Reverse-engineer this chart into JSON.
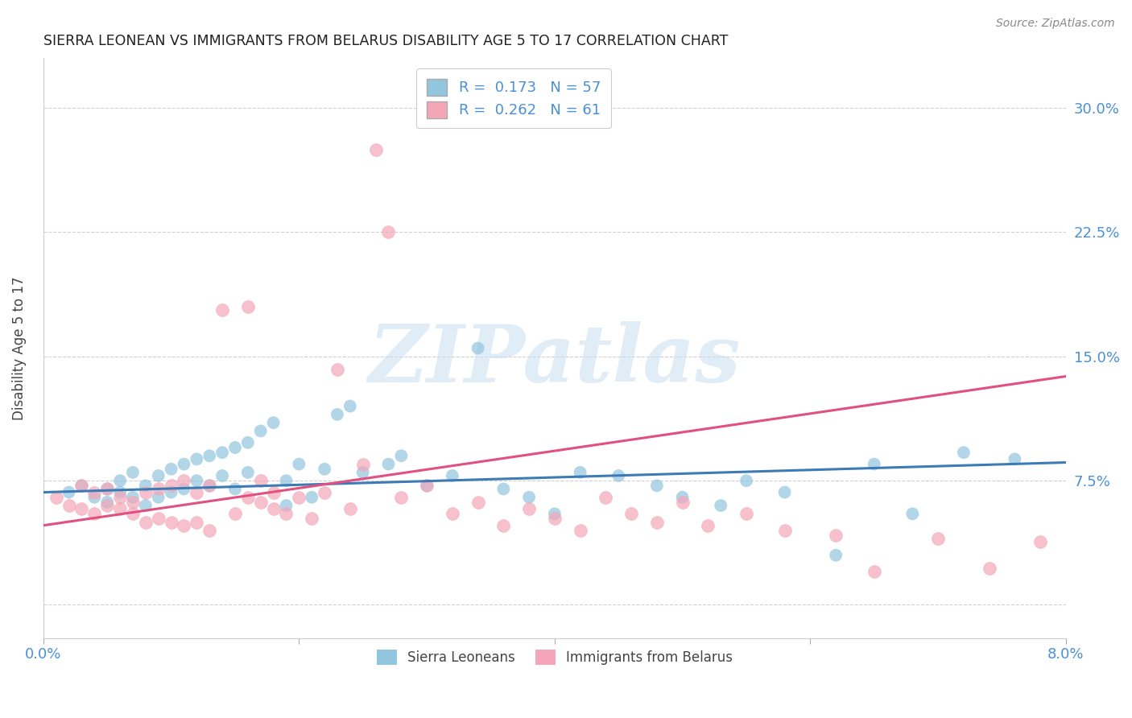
{
  "title": "SIERRA LEONEAN VS IMMIGRANTS FROM BELARUS DISABILITY AGE 5 TO 17 CORRELATION CHART",
  "source": "Source: ZipAtlas.com",
  "ylabel": "Disability Age 5 to 17",
  "ytick_labels": [
    "",
    "7.5%",
    "15.0%",
    "22.5%",
    "30.0%"
  ],
  "ytick_values": [
    0.0,
    0.075,
    0.15,
    0.225,
    0.3
  ],
  "xlim": [
    0.0,
    0.08
  ],
  "ylim": [
    -0.02,
    0.33
  ],
  "legend_label1": "Sierra Leoneans",
  "legend_label2": "Immigrants from Belarus",
  "R1": 0.173,
  "N1": 57,
  "R2": 0.262,
  "N2": 61,
  "color_blue": "#92c5de",
  "color_pink": "#f4a6b8",
  "color_blue_line": "#3d7bb5",
  "color_pink_line": "#e05080",
  "watermark_text": "ZIPatlas",
  "background_color": "#ffffff",
  "grid_color": "#d0d0d0",
  "title_color": "#222222",
  "axis_label_color": "#444444",
  "tick_label_color": "#4a90d9",
  "blue_x": [
    0.002,
    0.003,
    0.004,
    0.005,
    0.005,
    0.006,
    0.006,
    0.007,
    0.007,
    0.008,
    0.008,
    0.009,
    0.009,
    0.01,
    0.01,
    0.011,
    0.011,
    0.012,
    0.012,
    0.013,
    0.013,
    0.014,
    0.014,
    0.015,
    0.015,
    0.016,
    0.016,
    0.017,
    0.018,
    0.019,
    0.019,
    0.02,
    0.021,
    0.022,
    0.023,
    0.024,
    0.025,
    0.027,
    0.028,
    0.03,
    0.032,
    0.034,
    0.036,
    0.038,
    0.04,
    0.042,
    0.045,
    0.048,
    0.05,
    0.053,
    0.055,
    0.058,
    0.062,
    0.065,
    0.068,
    0.072,
    0.076
  ],
  "blue_y": [
    0.068,
    0.072,
    0.065,
    0.07,
    0.062,
    0.075,
    0.068,
    0.08,
    0.065,
    0.072,
    0.06,
    0.078,
    0.065,
    0.082,
    0.068,
    0.085,
    0.07,
    0.088,
    0.075,
    0.09,
    0.072,
    0.092,
    0.078,
    0.095,
    0.07,
    0.098,
    0.08,
    0.105,
    0.11,
    0.06,
    0.075,
    0.085,
    0.065,
    0.082,
    0.115,
    0.12,
    0.08,
    0.085,
    0.09,
    0.072,
    0.078,
    0.155,
    0.07,
    0.065,
    0.055,
    0.08,
    0.078,
    0.072,
    0.065,
    0.06,
    0.075,
    0.068,
    0.03,
    0.085,
    0.055,
    0.092,
    0.088
  ],
  "pink_x": [
    0.001,
    0.002,
    0.003,
    0.003,
    0.004,
    0.004,
    0.005,
    0.005,
    0.006,
    0.006,
    0.007,
    0.007,
    0.008,
    0.008,
    0.009,
    0.009,
    0.01,
    0.01,
    0.011,
    0.011,
    0.012,
    0.012,
    0.013,
    0.013,
    0.014,
    0.015,
    0.016,
    0.016,
    0.017,
    0.017,
    0.018,
    0.018,
    0.019,
    0.02,
    0.021,
    0.022,
    0.023,
    0.024,
    0.025,
    0.026,
    0.027,
    0.028,
    0.03,
    0.032,
    0.034,
    0.036,
    0.038,
    0.04,
    0.042,
    0.044,
    0.046,
    0.048,
    0.05,
    0.052,
    0.055,
    0.058,
    0.062,
    0.065,
    0.07,
    0.074,
    0.078
  ],
  "pink_y": [
    0.065,
    0.06,
    0.058,
    0.072,
    0.055,
    0.068,
    0.06,
    0.07,
    0.058,
    0.065,
    0.055,
    0.062,
    0.05,
    0.068,
    0.052,
    0.07,
    0.05,
    0.072,
    0.048,
    0.075,
    0.05,
    0.068,
    0.045,
    0.072,
    0.178,
    0.055,
    0.18,
    0.065,
    0.062,
    0.075,
    0.058,
    0.068,
    0.055,
    0.065,
    0.052,
    0.068,
    0.142,
    0.058,
    0.085,
    0.275,
    0.225,
    0.065,
    0.072,
    0.055,
    0.062,
    0.048,
    0.058,
    0.052,
    0.045,
    0.065,
    0.055,
    0.05,
    0.062,
    0.048,
    0.055,
    0.045,
    0.042,
    0.02,
    0.04,
    0.022,
    0.038
  ],
  "blue_trend_x": [
    0.0,
    0.08
  ],
  "blue_trend_y": [
    0.068,
    0.086
  ],
  "pink_trend_x": [
    0.0,
    0.08
  ],
  "pink_trend_y": [
    0.048,
    0.138
  ]
}
